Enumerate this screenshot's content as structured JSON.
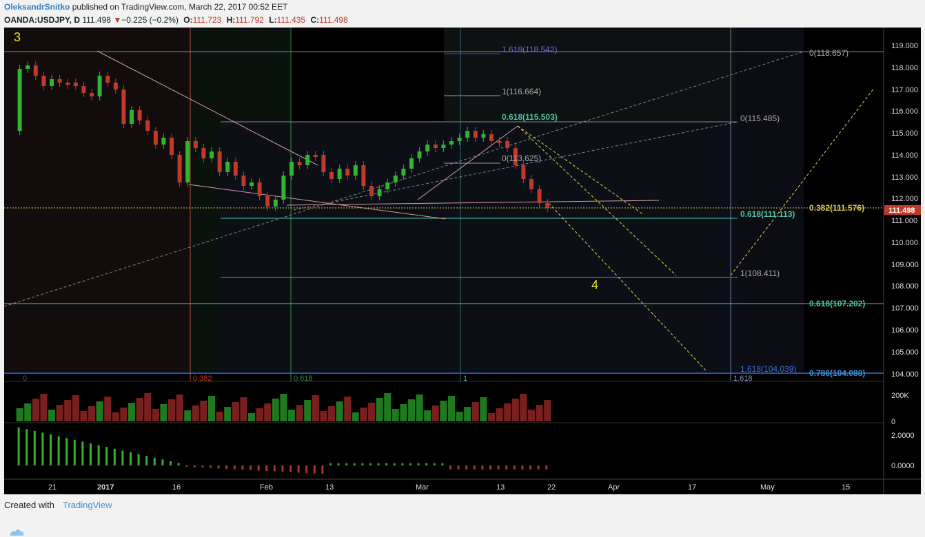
{
  "header": {
    "author": "OleksandrSnitko",
    "published_text": " published on TradingView.com, March 22, 2017 00:52 EET",
    "symbol": "OANDA:USDJPY, D",
    "last": "111.498",
    "change": "−0.225 (−0.2%)",
    "open_label": "O:",
    "open": "111.723",
    "high_label": "H:",
    "high": "111.792",
    "low_label": "L:",
    "low": "111.435",
    "close_label": "C:",
    "close": "111.498"
  },
  "annotations": {
    "wave3": "3",
    "wave4": "4"
  },
  "price_axis": {
    "labels": [
      "119.000",
      "118.000",
      "117.000",
      "116.000",
      "115.000",
      "114.000",
      "113.000",
      "112.000",
      "111.000",
      "110.000",
      "109.000",
      "108.000",
      "107.000",
      "106.000",
      "105.000",
      "104.000"
    ],
    "last_price_tag": "111.498"
  },
  "volume_axis": {
    "labels": [
      "200K",
      "0"
    ]
  },
  "macd_axis": {
    "labels": [
      "2.0000",
      "0.0000"
    ]
  },
  "time_axis": {
    "labels": [
      "21",
      "2017",
      "16",
      "Feb",
      "13",
      "Mar",
      "13",
      "22",
      "Apr",
      "17",
      "May",
      "15"
    ]
  },
  "fib_levels": {
    "l1": "1.618(118.542)",
    "l2": "1(116.664)",
    "l3": "0.618(115.503)",
    "l4": "0(113.625)",
    "r0": "0(118.657)",
    "r1": "0(115.485)",
    "r2": "0.382(111.576)",
    "r3": "0.618(111.113)",
    "r4": "1(108.411)",
    "r5": "0.618(107.202)",
    "r6": "1.618(104.039)",
    "r7": "0.786(104.088)"
  },
  "time_fib": {
    "t0": "0",
    "t1": "0.382",
    "t2": "0.618",
    "t3": "1",
    "t4": "1.618"
  },
  "footer": {
    "created_with": "Created with",
    "brand": "TradingView"
  },
  "colors": {
    "up": "#2fb52f",
    "down": "#c0392b",
    "fib_green": "#4fc3a1",
    "fib_blue": "#3b6fd8",
    "dashed_yellow": "#e6d84a",
    "trend_pink": "#d99a9a"
  }
}
